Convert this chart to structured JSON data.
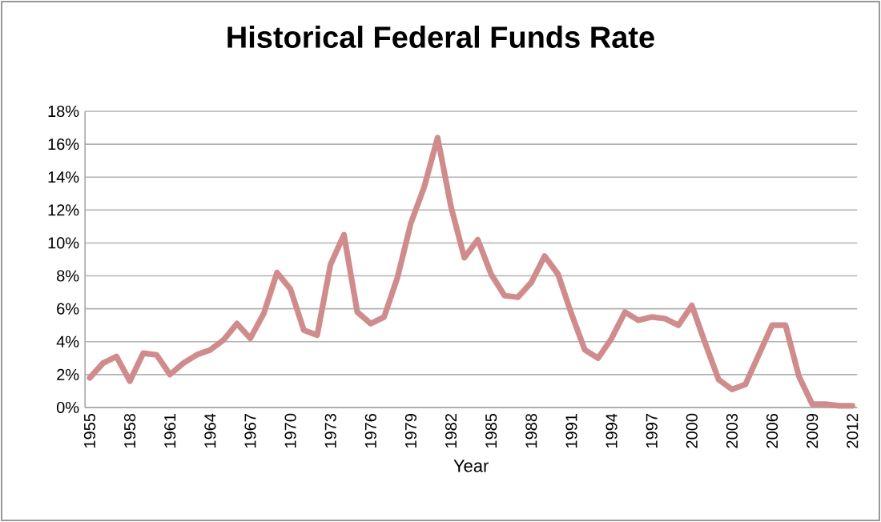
{
  "chart_data": {
    "type": "line",
    "title": "Historical Federal Funds Rate",
    "xlabel": "Year",
    "categories": [
      "1955",
      null,
      null,
      "1958",
      null,
      null,
      "1961",
      null,
      null,
      "1964",
      null,
      null,
      "1967",
      null,
      null,
      "1970",
      null,
      null,
      "1973",
      null,
      null,
      "1976",
      null,
      null,
      "1979",
      null,
      null,
      "1982",
      null,
      null,
      "1985",
      null,
      null,
      "1988",
      null,
      null,
      "1991",
      null,
      null,
      "1994",
      null,
      null,
      "1997",
      null,
      null,
      "2000",
      null,
      null,
      "2003",
      null,
      null,
      "2006",
      null,
      null,
      "2009",
      null,
      null,
      "2012"
    ],
    "series": [
      {
        "color": "#d08c8c",
        "values": [
          1.8,
          2.7,
          3.1,
          1.6,
          3.3,
          3.2,
          2.0,
          2.7,
          3.2,
          3.5,
          4.1,
          5.1,
          4.2,
          5.7,
          8.2,
          7.2,
          4.7,
          4.4,
          8.7,
          10.5,
          5.8,
          5.1,
          5.5,
          7.9,
          11.2,
          13.4,
          16.4,
          12.2,
          9.1,
          10.2,
          8.1,
          6.8,
          6.7,
          7.6,
          9.2,
          8.1,
          5.7,
          3.5,
          3.0,
          4.2,
          5.8,
          5.3,
          5.5,
          5.4,
          5.0,
          6.2,
          3.9,
          1.7,
          1.1,
          1.4,
          3.2,
          5.0,
          5.0,
          1.9,
          0.2,
          0.2,
          0.1,
          0.1
        ]
      }
    ],
    "ylim": [
      0,
      18
    ],
    "yticks": [
      {
        "value": 0,
        "label": "0%"
      },
      {
        "value": 2,
        "label": "2%"
      },
      {
        "value": 4,
        "label": "4%"
      },
      {
        "value": 6,
        "label": "6%"
      },
      {
        "value": 8,
        "label": "8%"
      },
      {
        "value": 10,
        "label": "10%"
      },
      {
        "value": 12,
        "label": "12%"
      },
      {
        "value": 14,
        "label": "14%"
      },
      {
        "value": 16,
        "label": "16%"
      },
      {
        "value": 18,
        "label": "18%"
      }
    ],
    "grid": "y",
    "line_style": "solid"
  }
}
